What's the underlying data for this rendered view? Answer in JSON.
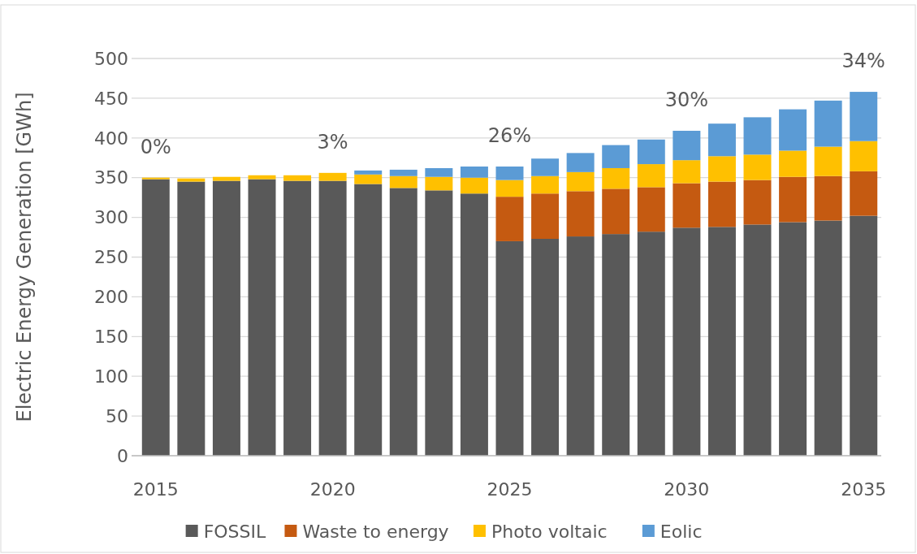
{
  "chart_data": {
    "type": "bar",
    "stacked": true,
    "ylabel": "Electric Energy Generation [GWh]",
    "categories": [
      "2015",
      null,
      null,
      null,
      null,
      "2020",
      null,
      null,
      null,
      null,
      "2025",
      null,
      null,
      null,
      null,
      "2030",
      null,
      null,
      null,
      null,
      "2035"
    ],
    "series": [
      {
        "name": "FOSSIL",
        "color": "#595959",
        "values": [
          348,
          345,
          346,
          348,
          346,
          346,
          342,
          337,
          334,
          330,
          270,
          273,
          276,
          279,
          282,
          287,
          288,
          291,
          294,
          296,
          302
        ]
      },
      {
        "name": "Waste to energy",
        "color": "#c55a11",
        "values": [
          null,
          null,
          null,
          null,
          null,
          null,
          null,
          null,
          null,
          null,
          56,
          57,
          57,
          57,
          56,
          56,
          57,
          56,
          57,
          56,
          56
        ]
      },
      {
        "name": "Photo voltaic",
        "color": "#ffc000",
        "values": [
          2,
          4,
          5,
          5,
          7,
          10,
          12,
          15,
          17,
          20,
          21,
          22,
          24,
          26,
          29,
          29,
          32,
          32,
          33,
          37,
          38
        ]
      },
      {
        "name": "Eolic",
        "color": "#5b9bd5",
        "values": [
          null,
          null,
          null,
          null,
          null,
          null,
          5,
          8,
          11,
          14,
          17,
          22,
          24,
          29,
          31,
          37,
          41,
          47,
          52,
          58,
          62
        ]
      }
    ],
    "ylim": [
      0,
      500
    ],
    "yticks": [
      0,
      50,
      100,
      150,
      200,
      250,
      300,
      350,
      400,
      450,
      500
    ],
    "grid": "y",
    "legend": "bottom",
    "annotations": [
      "0%",
      "3%",
      "26%",
      "30%",
      "34%"
    ]
  }
}
